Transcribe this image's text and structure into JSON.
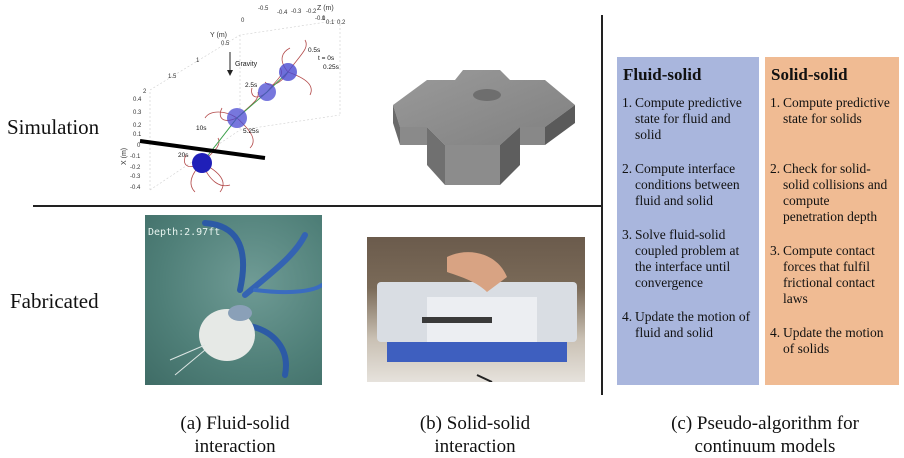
{
  "row_labels": {
    "simulation": "Simulation",
    "fabricated": "Fabricated"
  },
  "sim_plot": {
    "y_axis_label": "Y (m)",
    "z_axis_label": "Z (m)",
    "x_axis_label": "X (m)",
    "gravity_label": "Gravity",
    "z_ticks": [
      "-0.5",
      "-0.4",
      "-0.3",
      "-0.2",
      "-0.1",
      "0",
      "0.1",
      "0.2"
    ],
    "y_ticks": [
      "0",
      "0.5",
      "1",
      "1.5",
      "2"
    ],
    "x_ticks": [
      "0.4",
      "0.3",
      "0.2",
      "0.1",
      "0",
      "-0.1",
      "-0.2",
      "-0.3",
      "-0.4"
    ],
    "time_labels": [
      "0.5s",
      "t = 0s",
      "0.25s",
      "2.5s",
      "5.25s",
      "10s",
      "20s"
    ]
  },
  "photo_fluid": {
    "overlay_text": "Depth:2.97ft"
  },
  "algorithm": {
    "fluid_solid": {
      "title": "Fluid-solid",
      "steps": [
        {
          "num": "1.",
          "text": "Compute predictive state for fluid and solid"
        },
        {
          "num": "2.",
          "text": "Compute interface conditions between fluid and solid"
        },
        {
          "num": "3.",
          "text": "Solve fluid-solid coupled problem at the interface until convergence"
        },
        {
          "num": "4.",
          "text": "Update the motion of fluid and solid"
        }
      ],
      "bg_color": "#a9b6dd"
    },
    "solid_solid": {
      "title": "Solid-solid",
      "steps": [
        {
          "num": "1.",
          "text": "Compute predictive state for solids"
        },
        {
          "num": "2.",
          "text": "Check for solid-solid collisions and compute penetration depth"
        },
        {
          "num": "3.",
          "text": "Compute contact forces that fulfil frictional contact laws"
        },
        {
          "num": "4.",
          "text": "Update the motion of solids"
        }
      ],
      "bg_color": "#f0bb93"
    }
  },
  "captions": {
    "a_line1": "(a) Fluid-solid",
    "a_line2": "interaction",
    "b_line1": "(b) Solid-solid",
    "b_line2": "interaction",
    "c_line1": "(c) Pseudo-algorithm for",
    "c_line2": "continuum models"
  }
}
